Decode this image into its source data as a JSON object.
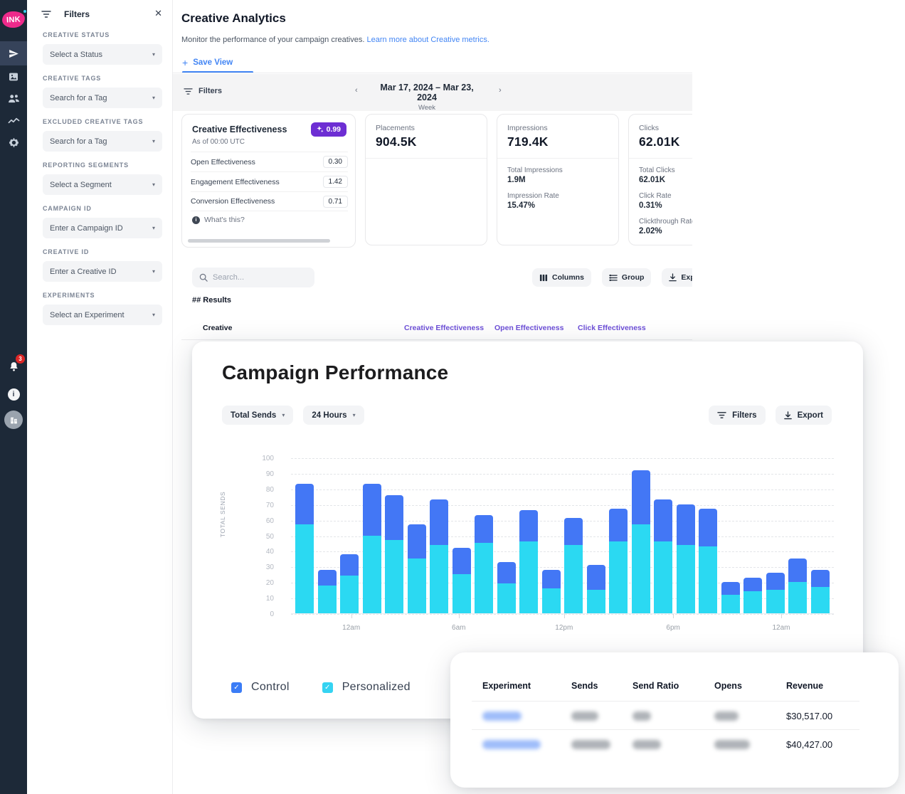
{
  "sidebar": {
    "logo": "INK",
    "nav": [
      {
        "icon": "send-icon",
        "active": true
      },
      {
        "icon": "creatives-icon",
        "active": false
      },
      {
        "icon": "audience-icon",
        "active": false
      },
      {
        "icon": "analytics-icon",
        "active": false
      },
      {
        "icon": "settings-icon",
        "active": false
      }
    ],
    "notifications_badge": "3",
    "info_icon": "i",
    "avatar_icon": "building-icon"
  },
  "filters_panel": {
    "title": "Filters",
    "close_icon": "✕",
    "sections": [
      {
        "label": "CREATIVE STATUS",
        "placeholder": "Select a Status"
      },
      {
        "label": "CREATIVE TAGS",
        "placeholder": "Search for a Tag"
      },
      {
        "label": "EXCLUDED CREATIVE TAGS",
        "placeholder": "Search for a Tag"
      },
      {
        "label": "REPORTING SEGMENTS",
        "placeholder": "Select a Segment"
      },
      {
        "label": "CAMPAIGN ID",
        "placeholder": "Enter a Campaign ID"
      },
      {
        "label": "CREATIVE ID",
        "placeholder": "Enter a Creative ID"
      },
      {
        "label": "EXPERIMENTS",
        "placeholder": "Select an Experiment"
      }
    ]
  },
  "header": {
    "title": "Creative Analytics",
    "subtitle": "Monitor the performance of your campaign creatives. ",
    "link_text": "Learn more about Creative metrics.",
    "save_view": "Save View",
    "plus": "+"
  },
  "filter_bar": {
    "label": "Filters",
    "prev": "‹",
    "next": "›",
    "date_range": "Mar 17, 2024 – Mar 23, 2024",
    "period": "Week"
  },
  "effectiveness_card": {
    "title": "Creative Effectiveness",
    "as_of": "As of 00:00 UTC",
    "badge_icon": "sparkle-icon",
    "badge_value": "0.99",
    "rows": [
      {
        "label": "Open Effectiveness",
        "value": "0.30"
      },
      {
        "label": "Engagement Effectiveness",
        "value": "1.42"
      },
      {
        "label": "Conversion Effectiveness",
        "value": "0.71"
      }
    ],
    "whats_this": "What's this?"
  },
  "stat_cards": [
    {
      "title": "Placements",
      "value": "904.5K",
      "details": []
    },
    {
      "title": "Impressions",
      "value": "719.4K",
      "details": [
        {
          "label": "Total Impressions",
          "value": "1.9M"
        },
        {
          "label": "Impression Rate",
          "value": "15.47%"
        }
      ]
    },
    {
      "title": "Clicks",
      "value": "62.01K",
      "details": [
        {
          "label": "Total Clicks",
          "value": "62.01K"
        },
        {
          "label": "Click Rate",
          "value": "0.31%"
        },
        {
          "label": "Clickthrough Rate",
          "value": "2.02%"
        }
      ]
    }
  ],
  "toolbar": {
    "search_placeholder": "Search...",
    "columns": "Columns",
    "group": "Group",
    "export": "Export"
  },
  "results": {
    "count_label": "## Results",
    "first_column": "Creative",
    "metric_columns": [
      "Creative Effectiveness",
      "Open Effectiveness",
      "Click Effectiveness"
    ],
    "metric_column_color": "#6d4fd8"
  },
  "modal": {
    "title": "Campaign Performance",
    "metric_dropdown": "Total Sends",
    "range_dropdown": "24 Hours",
    "filters_button": "Filters",
    "export_button": "Export",
    "legend": [
      {
        "label": "Control",
        "color": "#3b7cf6"
      },
      {
        "label": "Personalized",
        "color": "#35d3f2"
      }
    ]
  },
  "chart_data": {
    "type": "bar",
    "stacked": true,
    "title": "Campaign Performance",
    "ylabel": "TOTAL SENDS",
    "ylim": [
      0,
      100
    ],
    "ytick_step": 10,
    "grid": "dashed-horizontal",
    "x_unit": "hour (24 bars)",
    "x_tick_labels": [
      {
        "label": "12am",
        "pos_pct": 11.1
      },
      {
        "label": "6am",
        "pos_pct": 30.9
      },
      {
        "label": "12pm",
        "pos_pct": 50.3
      },
      {
        "label": "6pm",
        "pos_pct": 70.4
      },
      {
        "label": "12am",
        "pos_pct": 90.3
      }
    ],
    "series": [
      {
        "name": "Personalized",
        "color": "#2bd9f2",
        "values": [
          57,
          18,
          24,
          50,
          47,
          35,
          44,
          25,
          45,
          19,
          46,
          16,
          44,
          15,
          46,
          57,
          46,
          44,
          43,
          12,
          14,
          15,
          20,
          17
        ]
      },
      {
        "name": "Control",
        "color": "#4377f5",
        "values": [
          26,
          10,
          14,
          33,
          29,
          22,
          29,
          17,
          18,
          14,
          20,
          12,
          17,
          16,
          21,
          35,
          27,
          26,
          24,
          8,
          9,
          11,
          15,
          11
        ]
      }
    ],
    "totals": [
      83,
      28,
      38,
      83,
      76,
      57,
      73,
      42,
      63,
      33,
      66,
      28,
      61,
      31,
      67,
      92,
      73,
      70,
      67,
      20,
      23,
      26,
      35,
      28
    ]
  },
  "experiment_table": {
    "headers": [
      "Experiment",
      "Sends",
      "Send Ratio",
      "Opens",
      "Revenue"
    ],
    "rows": [
      {
        "experiment_blurred": true,
        "sends_blurred": true,
        "send_ratio_blurred": true,
        "opens_blurred": true,
        "revenue": "$30,517.00"
      },
      {
        "experiment_blurred": true,
        "sends_blurred": true,
        "send_ratio_blurred": true,
        "opens_blurred": true,
        "revenue": "$40,427.00"
      }
    ]
  }
}
